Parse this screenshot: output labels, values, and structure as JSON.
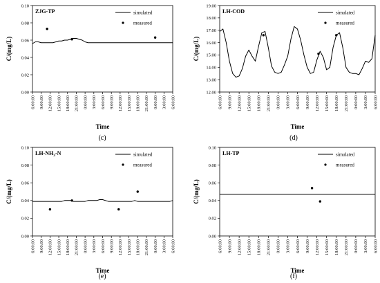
{
  "chart_data": [
    {
      "type": "line",
      "panel_caption": "(c)",
      "title": "ZJG-TP",
      "xlabel": "Time",
      "ylabel": "C/(mg/L)",
      "y_ticks": [
        "0.00",
        "0.02",
        "0.04",
        "0.06",
        "0.08",
        "0.10"
      ],
      "ylim": [
        0,
        0.1
      ],
      "x_ticks": [
        "6:00:00",
        "9:00:00",
        "12:00:00",
        "15:00:00",
        "18:00:00",
        "21:00:00",
        "0:00:00",
        "3:00:00",
        "6:00:00",
        "9:00:00",
        "12:00:00",
        "15:00:00",
        "18:00:00",
        "21:00:00",
        "0:00:00",
        "3:00:00",
        "6:00:00"
      ],
      "legend": {
        "line": "simulated",
        "marker": "measured",
        "position": "top-right"
      },
      "series": [
        {
          "name": "simulated",
          "x": [
            0,
            1,
            2,
            3,
            4,
            5,
            6,
            7,
            8,
            9,
            10,
            11,
            12,
            13,
            14,
            15,
            16,
            17,
            18,
            19,
            20,
            21,
            22,
            23,
            24,
            25,
            26,
            27,
            28,
            29,
            30,
            31,
            32,
            33,
            34,
            35,
            36,
            37,
            38,
            39,
            40,
            41,
            42,
            43,
            44,
            45,
            46,
            47,
            48
          ],
          "y": [
            0.056,
            0.058,
            0.058,
            0.057,
            0.057,
            0.057,
            0.057,
            0.057,
            0.058,
            0.059,
            0.059,
            0.06,
            0.06,
            0.061,
            0.062,
            0.062,
            0.061,
            0.06,
            0.058,
            0.057,
            0.057,
            0.057,
            0.057,
            0.057,
            0.057,
            0.057,
            0.057,
            0.057,
            0.057,
            0.057,
            0.057,
            0.057,
            0.057,
            0.057,
            0.057,
            0.057,
            0.057,
            0.057,
            0.057,
            0.057,
            0.057,
            0.057,
            0.057,
            0.057,
            0.057,
            0.057,
            0.057,
            0.057,
            0.057
          ]
        },
        {
          "name": "measured",
          "x": [
            5,
            13.5,
            42
          ],
          "y": [
            0.073,
            0.061,
            0.063
          ]
        }
      ]
    },
    {
      "type": "line",
      "panel_caption": "(d)",
      "title": "LH-COD",
      "xlabel": "Time",
      "ylabel": "C/(mg/L)",
      "y_ticks": [
        "12.00",
        "13.00",
        "14.00",
        "15.00",
        "16.00",
        "17.00",
        "18.00",
        "19.00"
      ],
      "ylim": [
        12,
        19
      ],
      "x_ticks": [
        "6:00:00",
        "9:00:00",
        "12:00:00",
        "15:00:00",
        "18:00:00",
        "21:00:00",
        "0:00:00",
        "3:00:00",
        "6:00:00",
        "9:00:00",
        "12:00:00",
        "15:00:00",
        "18:00:00",
        "21:00:00",
        "0:00:00",
        "3:00:00",
        "6:00:00"
      ],
      "legend": {
        "line": "simulated",
        "marker": "measured",
        "position": "top-right"
      },
      "series": [
        {
          "name": "simulated",
          "x": [
            0,
            1,
            2,
            3,
            4,
            5,
            6,
            7,
            8,
            9,
            10,
            11,
            12,
            13,
            14,
            15,
            16,
            17,
            18,
            19,
            20,
            21,
            22,
            23,
            24,
            25,
            26,
            27,
            28,
            29,
            30,
            31,
            32,
            33,
            34,
            35,
            36,
            37,
            38,
            39,
            40,
            41,
            42,
            43,
            44,
            45,
            46,
            47,
            48
          ],
          "y": [
            16.9,
            17.1,
            16.0,
            14.5,
            13.5,
            13.2,
            13.3,
            13.9,
            14.9,
            15.4,
            14.9,
            14.5,
            15.7,
            16.8,
            16.9,
            15.6,
            14.1,
            13.6,
            13.5,
            13.6,
            14.2,
            14.9,
            16.3,
            17.3,
            17.1,
            16.2,
            15.0,
            14.0,
            13.5,
            13.6,
            14.6,
            15.3,
            14.8,
            13.8,
            14.0,
            15.6,
            16.6,
            16.8,
            15.6,
            14.0,
            13.6,
            13.5,
            13.5,
            13.4,
            13.9,
            14.5,
            14.4,
            14.7,
            16.6
          ]
        },
        {
          "name": "measured",
          "x": [
            13.5,
            30.5,
            36
          ],
          "y": [
            16.6,
            15.1,
            16.6
          ]
        }
      ]
    },
    {
      "type": "line",
      "panel_caption": "(e)",
      "title": "LH-NH3-N",
      "title_parts": {
        "main": "LH-NH",
        "sub": "3",
        "suffix": "-N"
      },
      "xlabel": "Time",
      "ylabel": "C/(mg/L)",
      "y_ticks": [
        "0.00",
        "0.02",
        "0.04",
        "0.06",
        "0.08",
        "0.10"
      ],
      "ylim": [
        0,
        0.1
      ],
      "x_ticks": [
        "6:00:00",
        "9:00:00",
        "12:00:00",
        "15:00:00",
        "18:00:00",
        "21:00:00",
        "0:00:00",
        "3:00:00",
        "6:00:00",
        "9:00:00",
        "12:00:00",
        "15:00:00",
        "18:00:00",
        "21:00:00",
        "0:00:00",
        "3:00:00",
        "6:00:00"
      ],
      "legend": {
        "line": "simulated",
        "marker": "measured",
        "position": "top-right"
      },
      "series": [
        {
          "name": "simulated",
          "x": [
            0,
            1,
            2,
            3,
            4,
            5,
            6,
            7,
            8,
            9,
            10,
            11,
            12,
            13,
            14,
            15,
            16,
            17,
            18,
            19,
            20,
            21,
            22,
            23,
            24,
            25,
            26,
            27,
            28,
            29,
            30,
            31,
            32,
            33,
            34,
            35,
            36,
            37,
            38,
            39,
            40,
            41,
            42,
            43,
            44,
            45,
            46,
            47,
            48
          ],
          "y": [
            0.039,
            0.039,
            0.039,
            0.039,
            0.039,
            0.039,
            0.039,
            0.039,
            0.039,
            0.039,
            0.039,
            0.04,
            0.04,
            0.04,
            0.039,
            0.039,
            0.039,
            0.039,
            0.039,
            0.04,
            0.04,
            0.04,
            0.04,
            0.041,
            0.041,
            0.04,
            0.039,
            0.039,
            0.039,
            0.039,
            0.039,
            0.039,
            0.039,
            0.039,
            0.039,
            0.04,
            0.039,
            0.039,
            0.039,
            0.039,
            0.039,
            0.039,
            0.039,
            0.039,
            0.039,
            0.039,
            0.039,
            0.039,
            0.04
          ]
        },
        {
          "name": "measured",
          "x": [
            6,
            13.5,
            29.5,
            36
          ],
          "y": [
            0.03,
            0.04,
            0.03,
            0.05
          ]
        }
      ]
    },
    {
      "type": "line",
      "panel_caption": "(f)",
      "title": "LH-TP",
      "xlabel": "Time",
      "ylabel": "C/(mg/L)",
      "y_ticks": [
        "0.00",
        "0.02",
        "0.04",
        "0.06",
        "0.08",
        "0.10"
      ],
      "ylim": [
        0,
        0.1
      ],
      "x_ticks": [
        "6:00:00",
        "9:00:00",
        "12:00:00",
        "15:00:00",
        "18:00:00",
        "21:00:00",
        "0:00:00",
        "3:00:00",
        "6:00:00",
        "9:00:00",
        "12:00:00",
        "15:00:00",
        "18:00:00",
        "21:00:00",
        "0:00:00",
        "3:00:00",
        "6:00:00"
      ],
      "legend": {
        "line": "simulated",
        "marker": "measured",
        "position": "top-right"
      },
      "series": [
        {
          "name": "simulated",
          "x": [
            0,
            1,
            2,
            3,
            4,
            5,
            6,
            7,
            8,
            9,
            10,
            11,
            12,
            13,
            14,
            15,
            16,
            17,
            18,
            19,
            20,
            21,
            22,
            23,
            24,
            25,
            26,
            27,
            28,
            29,
            30,
            31,
            32,
            33,
            34,
            35,
            36,
            37,
            38,
            39,
            40,
            41,
            42,
            43,
            44,
            45,
            46,
            47,
            48
          ],
          "y": [
            0.047,
            0.047,
            0.047,
            0.047,
            0.047,
            0.047,
            0.047,
            0.047,
            0.047,
            0.047,
            0.047,
            0.047,
            0.047,
            0.047,
            0.047,
            0.047,
            0.047,
            0.047,
            0.047,
            0.047,
            0.047,
            0.047,
            0.047,
            0.047,
            0.047,
            0.047,
            0.047,
            0.047,
            0.047,
            0.047,
            0.047,
            0.047,
            0.047,
            0.047,
            0.047,
            0.047,
            0.047,
            0.047,
            0.047,
            0.047,
            0.047,
            0.047,
            0.047,
            0.047,
            0.047,
            0.047,
            0.047,
            0.047,
            0.047
          ]
        },
        {
          "name": "measured",
          "x": [
            28.5,
            31
          ],
          "y": [
            0.054,
            0.039
          ]
        }
      ]
    }
  ]
}
